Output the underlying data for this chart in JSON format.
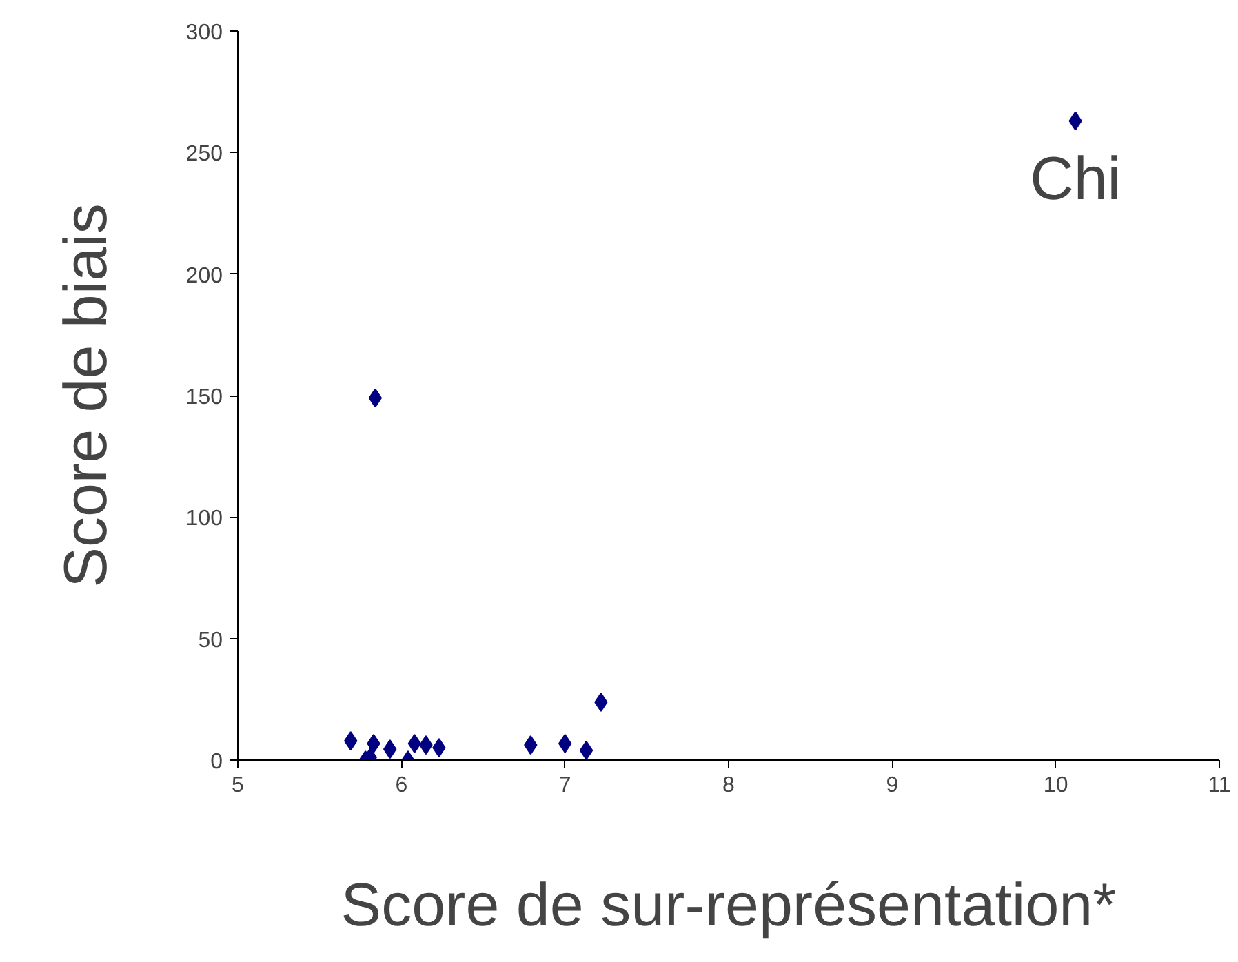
{
  "chart_data": {
    "type": "scatter",
    "xlabel": "Score de sur-représentation*",
    "ylabel": "Score de biais",
    "xlim": [
      5,
      11
    ],
    "xticks": [
      5,
      6,
      7,
      8,
      9,
      10,
      11
    ],
    "ylim": [
      0,
      300
    ],
    "yticks": [
      0,
      50,
      100,
      150,
      200,
      250,
      300
    ],
    "grid": false,
    "marker": "diamond",
    "series": [
      {
        "color": "#000080",
        "x": [
          5.69,
          5.83,
          5.78,
          5.81,
          5.93,
          6.04,
          6.08,
          6.15,
          6.23,
          6.79,
          7.0,
          7.13,
          7.22,
          5.84,
          10.12
        ],
        "values": [
          7.9,
          6.8,
          0,
          1.1,
          4.5,
          0,
          6.8,
          6.2,
          5.1,
          6.2,
          6.8,
          4.0,
          23.8,
          149,
          263
        ]
      }
    ],
    "annotations": [
      {
        "text": "Chi",
        "x": 10.12,
        "y": 263
      }
    ]
  }
}
